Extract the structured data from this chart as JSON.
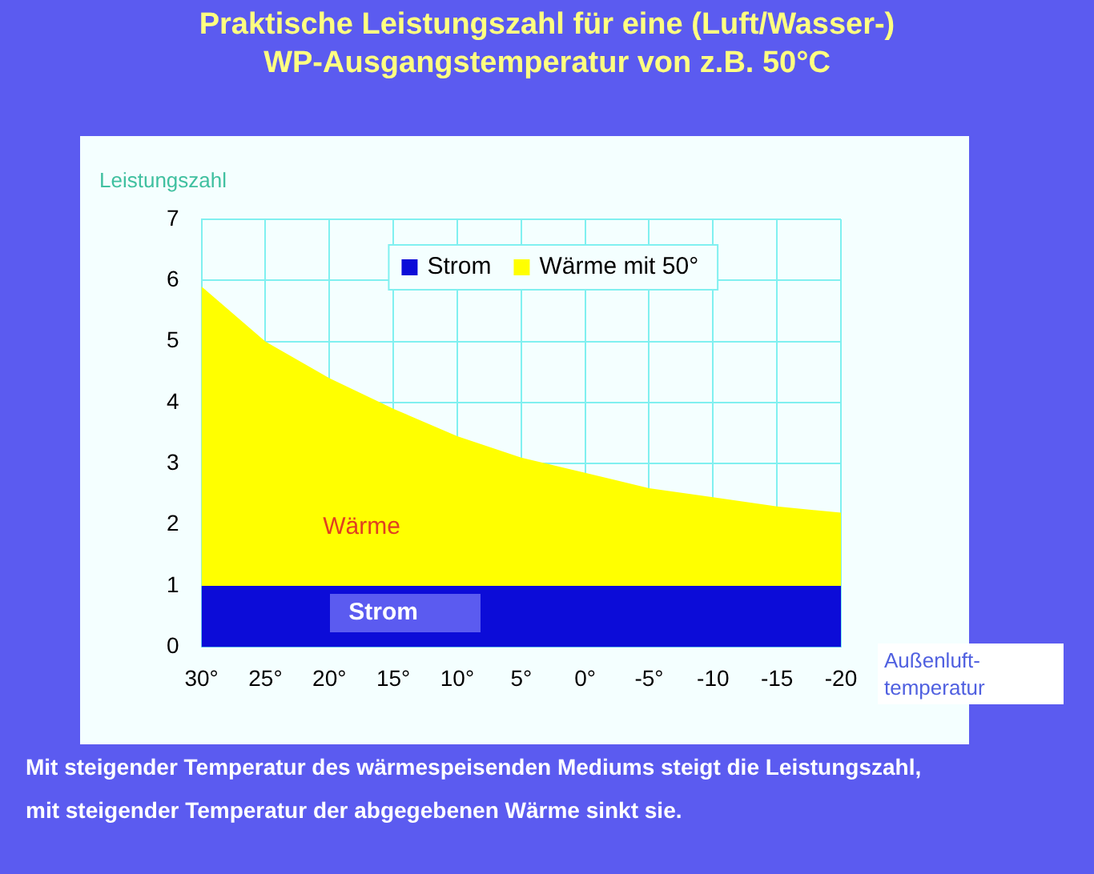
{
  "chart_data": {
    "type": "area",
    "title": "Praktische Leistungszahl für eine (Luft/Wasser-)\nWP-Ausgangstemperatur von z.B. 50°C",
    "ylabel": "Leistungszahl",
    "xlabel": "Außenluft-\ntemperatur",
    "categories": [
      "30°",
      "25°",
      "20°",
      "15°",
      "10°",
      "5°",
      "0°",
      "-5°",
      "-10",
      "-15",
      "-20"
    ],
    "series": [
      {
        "name": "Strom",
        "color": "#0c0cd8",
        "values": [
          1,
          1,
          1,
          1,
          1,
          1,
          1,
          1,
          1,
          1,
          1
        ]
      },
      {
        "name": "Wärme mit 50°",
        "color": "#ffff00",
        "values": [
          4.9,
          4.0,
          3.4,
          2.9,
          2.45,
          2.1,
          1.85,
          1.6,
          1.45,
          1.3,
          1.2
        ]
      }
    ],
    "stacked": true,
    "ylim": [
      0,
      7
    ],
    "yticks": [
      0,
      1,
      2,
      3,
      4,
      5,
      6,
      7
    ],
    "grid": true,
    "legend": "top",
    "annotations": [
      "Wärme",
      "Strom",
      "Mit steigender Temperatur des wärmespeisenden Mediums steigt die Leistungszahl,",
      "mit steigender Temperatur der abgegebenen Wärme sinkt sie."
    ]
  }
}
